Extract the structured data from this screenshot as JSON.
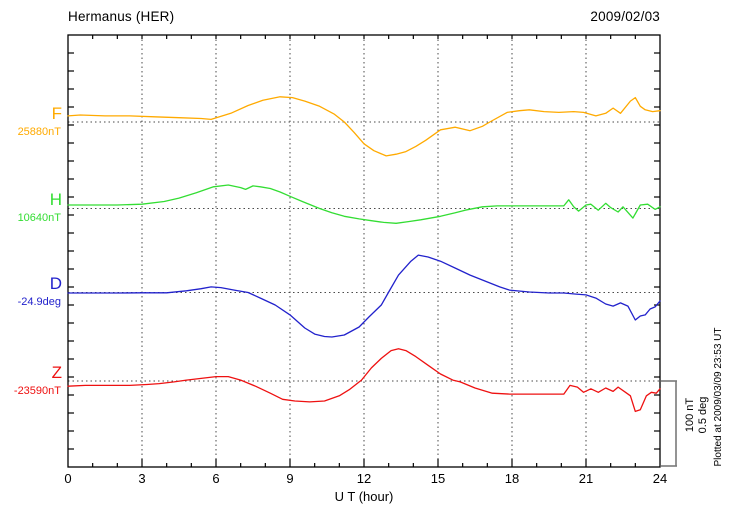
{
  "header": {
    "title": "Hermanus (HER)",
    "date": "2009/02/03"
  },
  "axes": {
    "x_label": "U T (hour)",
    "x_ticks": [
      "0",
      "3",
      "6",
      "9",
      "12",
      "15",
      "18",
      "21",
      "24"
    ],
    "grid_hours": [
      3,
      6,
      9,
      12,
      15,
      18,
      21
    ]
  },
  "scale_bar": {
    "line1": "100 nT",
    "line2": "0.5 deg"
  },
  "footer_note": "Plotted at 2009/03/09 23:53 UT",
  "chart_data": {
    "type": "line",
    "title": "Hermanus (HER) magnetogram 2009/02/03",
    "xlabel": "U T (hour)",
    "x_range_hours": [
      0,
      24
    ],
    "grid": "dotted baselines per trace, dotted vertical lines every 3 hours",
    "scale": {
      "nT_per_division": 100,
      "deg_per_division": 0.5
    },
    "series": [
      {
        "name": "F",
        "unit": "nT",
        "baseline_label": "25880nT",
        "color": "#ffaa00",
        "points": [
          [
            0,
            7
          ],
          [
            0.5,
            8
          ],
          [
            1.5,
            7
          ],
          [
            2.5,
            7
          ],
          [
            3.5,
            6
          ],
          [
            4.5,
            5
          ],
          [
            5.4,
            4
          ],
          [
            5.8,
            3
          ],
          [
            6.6,
            10
          ],
          [
            7.3,
            19
          ],
          [
            7.9,
            25
          ],
          [
            8.6,
            29
          ],
          [
            9.1,
            28
          ],
          [
            9.6,
            24
          ],
          [
            10.2,
            18
          ],
          [
            10.8,
            9
          ],
          [
            11.2,
            0
          ],
          [
            11.6,
            -12
          ],
          [
            12,
            -25
          ],
          [
            12.4,
            -33
          ],
          [
            12.9,
            -39
          ],
          [
            13.3,
            -37
          ],
          [
            13.7,
            -34
          ],
          [
            14.1,
            -28
          ],
          [
            14.5,
            -21
          ],
          [
            15.1,
            -9
          ],
          [
            15.7,
            -6
          ],
          [
            16.3,
            -10
          ],
          [
            16.8,
            -5
          ],
          [
            17.1,
            0
          ],
          [
            17.8,
            11
          ],
          [
            18.3,
            13
          ],
          [
            18.7,
            14
          ],
          [
            19.3,
            12
          ],
          [
            19.9,
            11
          ],
          [
            20.5,
            12
          ],
          [
            20.9,
            11
          ],
          [
            21.4,
            7
          ],
          [
            21.8,
            10
          ],
          [
            22.1,
            16
          ],
          [
            22.4,
            10
          ],
          [
            22.8,
            24
          ],
          [
            23,
            28
          ],
          [
            23.2,
            18
          ],
          [
            23.4,
            14
          ],
          [
            23.7,
            12
          ],
          [
            24,
            13
          ]
        ]
      },
      {
        "name": "H",
        "unit": "nT",
        "baseline_label": "10640nT",
        "color": "#33dd33",
        "points": [
          [
            0,
            4
          ],
          [
            1,
            4
          ],
          [
            2,
            4
          ],
          [
            3,
            5
          ],
          [
            3.9,
            8
          ],
          [
            4.5,
            12
          ],
          [
            5.2,
            18
          ],
          [
            5.9,
            25
          ],
          [
            6.5,
            27
          ],
          [
            7,
            24
          ],
          [
            7.2,
            22
          ],
          [
            7.5,
            26
          ],
          [
            7.8,
            25
          ],
          [
            8.2,
            23
          ],
          [
            8.6,
            19
          ],
          [
            9,
            14
          ],
          [
            9.5,
            8
          ],
          [
            10.2,
            0
          ],
          [
            10.7,
            -5
          ],
          [
            11.2,
            -9
          ],
          [
            11.8,
            -12
          ],
          [
            12.3,
            -14
          ],
          [
            12.8,
            -16
          ],
          [
            13.3,
            -17
          ],
          [
            13.8,
            -15
          ],
          [
            14.3,
            -13
          ],
          [
            15.1,
            -9
          ],
          [
            15.7,
            -5
          ],
          [
            16.1,
            -2
          ],
          [
            16.8,
            2
          ],
          [
            17.4,
            3
          ],
          [
            18.1,
            3
          ],
          [
            18.7,
            3
          ],
          [
            19.5,
            3
          ],
          [
            20.1,
            3
          ],
          [
            20.3,
            10
          ],
          [
            20.5,
            2
          ],
          [
            20.7,
            -3
          ],
          [
            21,
            4
          ],
          [
            21.2,
            5
          ],
          [
            21.5,
            -2
          ],
          [
            21.8,
            6
          ],
          [
            22,
            1
          ],
          [
            22.3,
            -4
          ],
          [
            22.5,
            2
          ],
          [
            22.9,
            -11
          ],
          [
            23.2,
            4
          ],
          [
            23.5,
            5
          ],
          [
            23.8,
            -1
          ],
          [
            24,
            2
          ]
        ]
      },
      {
        "name": "D",
        "unit": "deg",
        "baseline_label": "-24.9deg",
        "color": "#2222cc",
        "points": [
          [
            0,
            -0.003
          ],
          [
            1,
            -0.003
          ],
          [
            2,
            -0.003
          ],
          [
            3,
            -0.002
          ],
          [
            4,
            -0.002
          ],
          [
            4.8,
            0.01
          ],
          [
            5.4,
            0.022
          ],
          [
            5.8,
            0.032
          ],
          [
            6.2,
            0.028
          ],
          [
            6.8,
            0.012
          ],
          [
            7.3,
            0
          ],
          [
            7.8,
            -0.032
          ],
          [
            8.4,
            -0.072
          ],
          [
            9,
            -0.129
          ],
          [
            9.6,
            -0.204
          ],
          [
            10,
            -0.239
          ],
          [
            10.4,
            -0.253
          ],
          [
            10.7,
            -0.256
          ],
          [
            11.2,
            -0.244
          ],
          [
            11.8,
            -0.198
          ],
          [
            12.2,
            -0.141
          ],
          [
            12.7,
            -0.072
          ],
          [
            13,
            0.003
          ],
          [
            13.4,
            0.1
          ],
          [
            13.9,
            0.18
          ],
          [
            14.2,
            0.215
          ],
          [
            14.6,
            0.204
          ],
          [
            15.1,
            0.18
          ],
          [
            15.7,
            0.14
          ],
          [
            16.3,
            0.1
          ],
          [
            16.9,
            0.066
          ],
          [
            17.5,
            0.032
          ],
          [
            17.9,
            0.014
          ],
          [
            18.7,
            0.003
          ],
          [
            19.5,
            -0.003
          ],
          [
            20.1,
            -0.003
          ],
          [
            20.6,
            -0.009
          ],
          [
            21,
            -0.014
          ],
          [
            21.4,
            -0.032
          ],
          [
            21.8,
            -0.066
          ],
          [
            22.1,
            -0.078
          ],
          [
            22.4,
            -0.06
          ],
          [
            22.7,
            -0.078
          ],
          [
            23,
            -0.158
          ],
          [
            23.2,
            -0.135
          ],
          [
            23.4,
            -0.129
          ],
          [
            23.6,
            -0.095
          ],
          [
            23.8,
            -0.083
          ],
          [
            24,
            -0.049
          ]
        ]
      },
      {
        "name": "Z",
        "unit": "nT",
        "baseline_label": "-23590nT",
        "color": "#ee1111",
        "points": [
          [
            0,
            -6
          ],
          [
            0.7,
            -5
          ],
          [
            1.5,
            -5
          ],
          [
            2.5,
            -5
          ],
          [
            3.2,
            -4
          ],
          [
            3.7,
            -3
          ],
          [
            4.3,
            -1
          ],
          [
            4.8,
            1
          ],
          [
            5.4,
            3
          ],
          [
            6,
            5
          ],
          [
            6.5,
            5
          ],
          [
            7,
            1
          ],
          [
            7.6,
            -6
          ],
          [
            8.2,
            -14
          ],
          [
            8.7,
            -21
          ],
          [
            9.2,
            -23
          ],
          [
            9.8,
            -24
          ],
          [
            10.4,
            -23
          ],
          [
            11,
            -17
          ],
          [
            11.4,
            -10
          ],
          [
            11.9,
            1
          ],
          [
            12.3,
            15
          ],
          [
            12.7,
            26
          ],
          [
            13.1,
            35
          ],
          [
            13.4,
            37
          ],
          [
            13.7,
            35
          ],
          [
            14.1,
            28
          ],
          [
            14.6,
            18
          ],
          [
            15.1,
            8
          ],
          [
            15.6,
            1
          ],
          [
            15.9,
            -1
          ],
          [
            16.5,
            -8
          ],
          [
            17.2,
            -14
          ],
          [
            17.9,
            -15
          ],
          [
            18.7,
            -15
          ],
          [
            19.5,
            -15
          ],
          [
            20.1,
            -15
          ],
          [
            20.35,
            -5
          ],
          [
            20.65,
            -7
          ],
          [
            20.9,
            -13
          ],
          [
            21.2,
            -9
          ],
          [
            21.5,
            -13
          ],
          [
            21.8,
            -8
          ],
          [
            22.1,
            -12
          ],
          [
            22.3,
            -7
          ],
          [
            22.6,
            -13
          ],
          [
            22.8,
            -17
          ],
          [
            23,
            -35
          ],
          [
            23.2,
            -33
          ],
          [
            23.45,
            -17
          ],
          [
            23.65,
            -13
          ],
          [
            23.85,
            -14
          ],
          [
            24,
            -9
          ]
        ]
      }
    ]
  }
}
